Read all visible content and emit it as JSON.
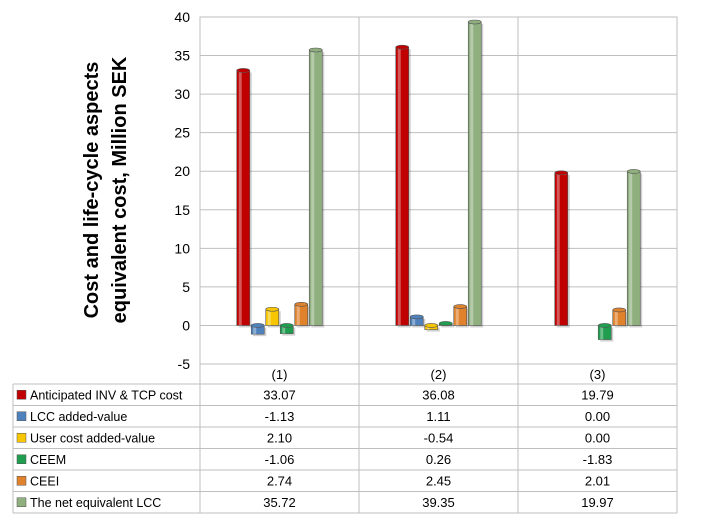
{
  "chart_data": {
    "type": "bar",
    "categories": [
      "(1)",
      "(2)",
      "(3)"
    ],
    "ylabel_lines": [
      "Cost and life-cycle aspects",
      "equivalent cost, Million SEK"
    ],
    "ylim": [
      -5,
      40
    ],
    "yticks": [
      -5,
      0,
      5,
      10,
      15,
      20,
      25,
      30,
      35,
      40
    ],
    "grid": true,
    "legend_placement": "data-table-bottom",
    "series": [
      {
        "name": "Anticipated INV & TCP cost",
        "color": "#c00000",
        "values": [
          33.07,
          36.08,
          19.79
        ],
        "labels": [
          "33.07",
          "36.08",
          "19.79"
        ]
      },
      {
        "name": "LCC added-value",
        "color": "#4f81bd",
        "values": [
          -1.13,
          1.11,
          0.0
        ],
        "labels": [
          "-1.13",
          "1.11",
          "0.00"
        ]
      },
      {
        "name": "User cost added-value",
        "color": "#f7c600",
        "values": [
          2.1,
          -0.54,
          0.0
        ],
        "labels": [
          "2.10",
          "-0.54",
          "0.00"
        ]
      },
      {
        "name": "CEEM",
        "color": "#1f9e4f",
        "values": [
          -1.06,
          0.26,
          -1.83
        ],
        "labels": [
          "-1.06",
          "0.26",
          "-1.83"
        ]
      },
      {
        "name": "CEEI",
        "color": "#e0822b",
        "values": [
          2.74,
          2.45,
          2.01
        ],
        "labels": [
          "2.74",
          "2.45",
          "2.01"
        ]
      },
      {
        "name": "The net equivalent LCC",
        "color": "#8faf7f",
        "values": [
          35.72,
          39.35,
          19.97
        ],
        "labels": [
          "35.72",
          "39.35",
          "19.97"
        ]
      }
    ]
  }
}
